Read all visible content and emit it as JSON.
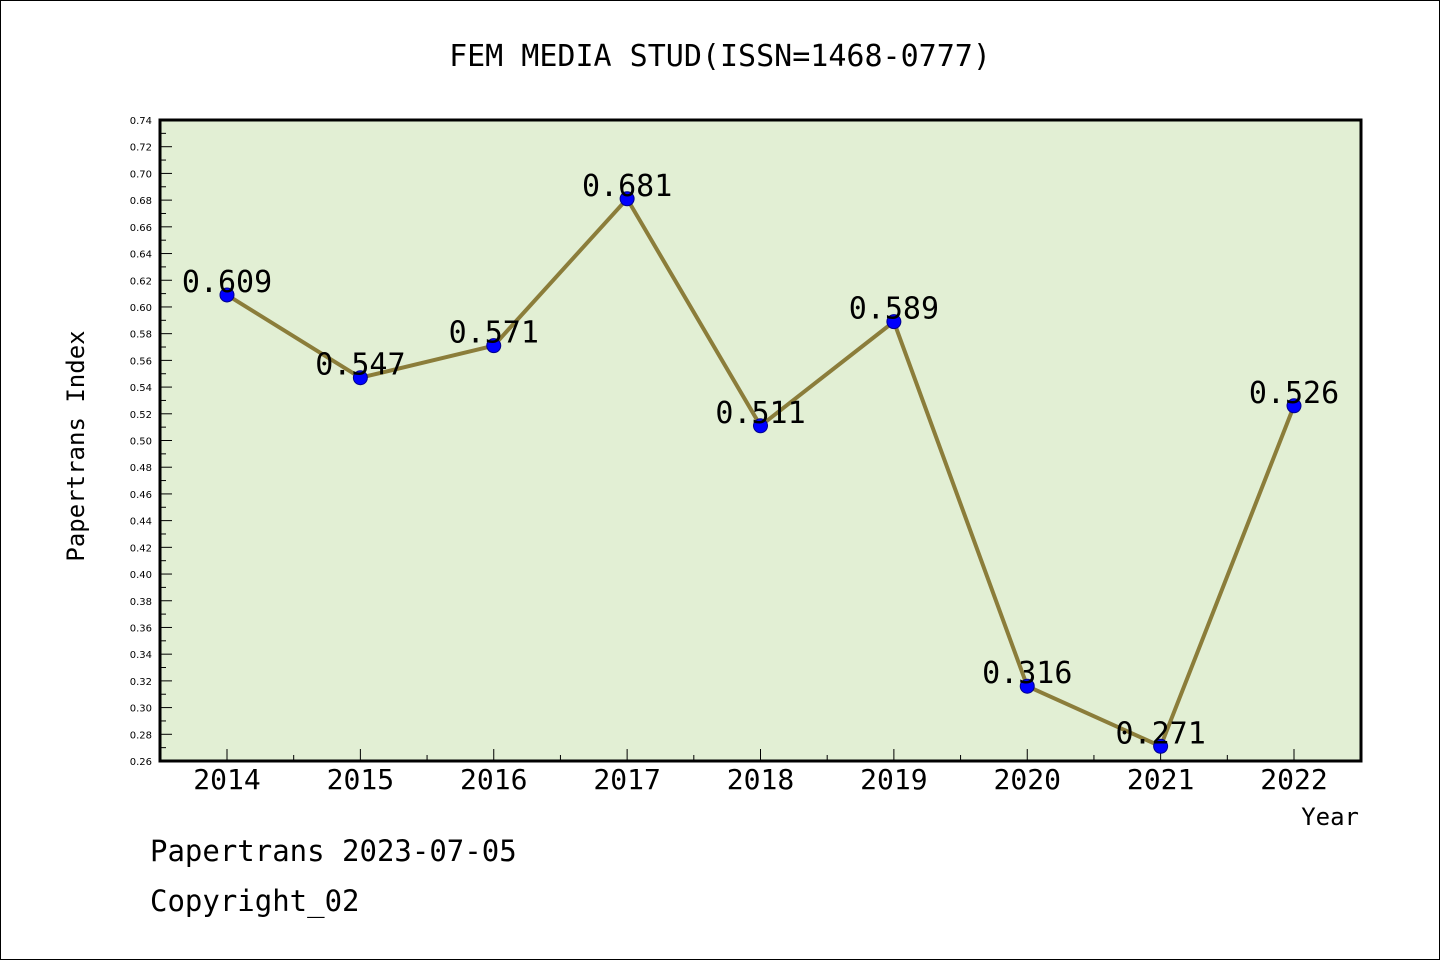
{
  "chart_data": {
    "type": "line",
    "title": "FEM MEDIA STUD(ISSN=1468-0777)",
    "xlabel": "Year",
    "ylabel": "Papertrans Index",
    "categories": [
      "2014",
      "2015",
      "2016",
      "2017",
      "2018",
      "2019",
      "2020",
      "2021",
      "2022"
    ],
    "values": [
      0.609,
      0.547,
      0.571,
      0.681,
      0.511,
      0.589,
      0.316,
      0.271,
      0.526
    ],
    "data_labels": [
      "0.609",
      "0.547",
      "0.571",
      "0.681",
      "0.511",
      "0.589",
      "0.316",
      "0.271",
      "0.526"
    ],
    "ylim": [
      0.26,
      0.74
    ],
    "yticks": [
      "0.26",
      "0.28",
      "0.30",
      "0.32",
      "0.34",
      "0.36",
      "0.38",
      "0.40",
      "0.42",
      "0.44",
      "0.46",
      "0.48",
      "0.50",
      "0.52",
      "0.54",
      "0.56",
      "0.58",
      "0.60",
      "0.62",
      "0.64",
      "0.66",
      "0.68",
      "0.70",
      "0.72",
      "0.74"
    ],
    "grid": false,
    "legend": "none",
    "colors": {
      "plot_background": "#e2efd4",
      "line": "#8b7d3a",
      "marker": "#0000ff"
    }
  },
  "footer": {
    "line1": "Papertrans 2023-07-05",
    "line2": "Copyright_02"
  }
}
